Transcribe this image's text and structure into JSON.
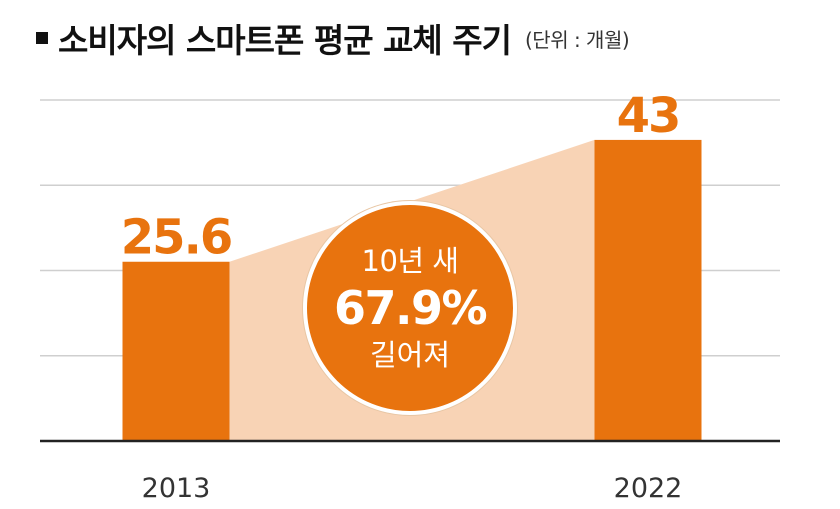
{
  "title": "소비자의 스마트폰 평균 교체 주기",
  "unit": "(단위 : 개월)",
  "annotation": {
    "line1": "10년 새",
    "line2": "67.9%",
    "line3": "길어져"
  },
  "colors": {
    "bar": "#e8730e",
    "band": "#f8d3b5",
    "grid": "#cfcfcf",
    "axis": "#222222"
  },
  "chart_data": {
    "type": "bar",
    "title": "소비자의 스마트폰 평균 교체 주기",
    "unit": "(단위 : 개월)",
    "categories": [
      "2013",
      "2022"
    ],
    "values": [
      25.6,
      43
    ],
    "value_labels": [
      "25.6",
      "43"
    ],
    "ylim": [
      0,
      48.7
    ],
    "grid": true,
    "annotation": "10년 새 67.9% 길어져"
  }
}
